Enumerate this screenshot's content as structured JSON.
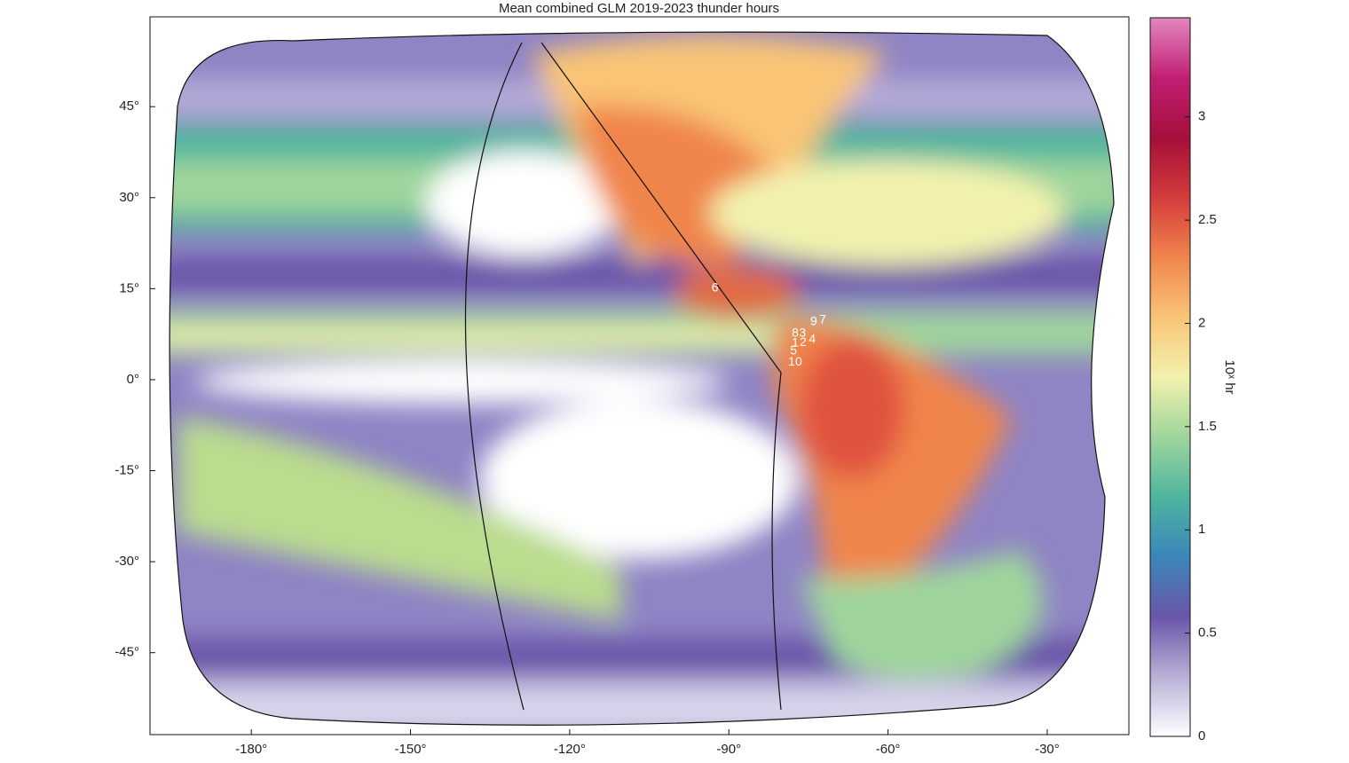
{
  "chart_data": {
    "type": "heatmap-map",
    "title": "Mean combined GLM 2019-2023 thunder hours",
    "xlim": [
      -199.1,
      -14.6
    ],
    "ylim": [
      -58.5,
      59.8
    ],
    "xticks": [
      {
        "value": -180,
        "label": "-180°"
      },
      {
        "value": -150,
        "label": "-150°"
      },
      {
        "value": -120,
        "label": "-120°"
      },
      {
        "value": -90,
        "label": "-90°"
      },
      {
        "value": -60,
        "label": "-60°"
      },
      {
        "value": -30,
        "label": "-30°"
      }
    ],
    "yticks": [
      {
        "value": 45,
        "label": "45°"
      },
      {
        "value": 30,
        "label": "30°"
      },
      {
        "value": 15,
        "label": "15°"
      },
      {
        "value": 0,
        "label": "0°"
      },
      {
        "value": -15,
        "label": "-15°"
      },
      {
        "value": -30,
        "label": "-30°"
      },
      {
        "value": -45,
        "label": "-45°"
      }
    ],
    "colorbar": {
      "label": "10ˣ hr",
      "lim": [
        0,
        3.48
      ],
      "ticks": [
        0,
        0.5,
        1,
        1.5,
        2,
        2.5,
        3
      ],
      "colors": [
        "#ffffff",
        "#b9b0d6",
        "#6a55a8",
        "#3a86bb",
        "#4fb59e",
        "#9fd59c",
        "#f2f2ae",
        "#f9c476",
        "#f0854c",
        "#d33b3c",
        "#a50f3a",
        "#c21f74",
        "#e287bd"
      ]
    },
    "annotations": [
      {
        "label": "6",
        "x": -92.6,
        "y": 15.1
      },
      {
        "label": "8",
        "x": -77.5,
        "y": 7.6
      },
      {
        "label": "3",
        "x": -76.1,
        "y": 7.6
      },
      {
        "label": "9",
        "x": -74.0,
        "y": 9.5
      },
      {
        "label": "7",
        "x": -72.3,
        "y": 9.8
      },
      {
        "label": "1",
        "x": -77.5,
        "y": 6.0
      },
      {
        "label": "2",
        "x": -76.0,
        "y": 6.1
      },
      {
        "label": "4",
        "x": -74.3,
        "y": 6.6
      },
      {
        "label": "5",
        "x": -77.8,
        "y": 4.7
      },
      {
        "label": "10",
        "x": -77.5,
        "y": 2.9
      }
    ]
  }
}
